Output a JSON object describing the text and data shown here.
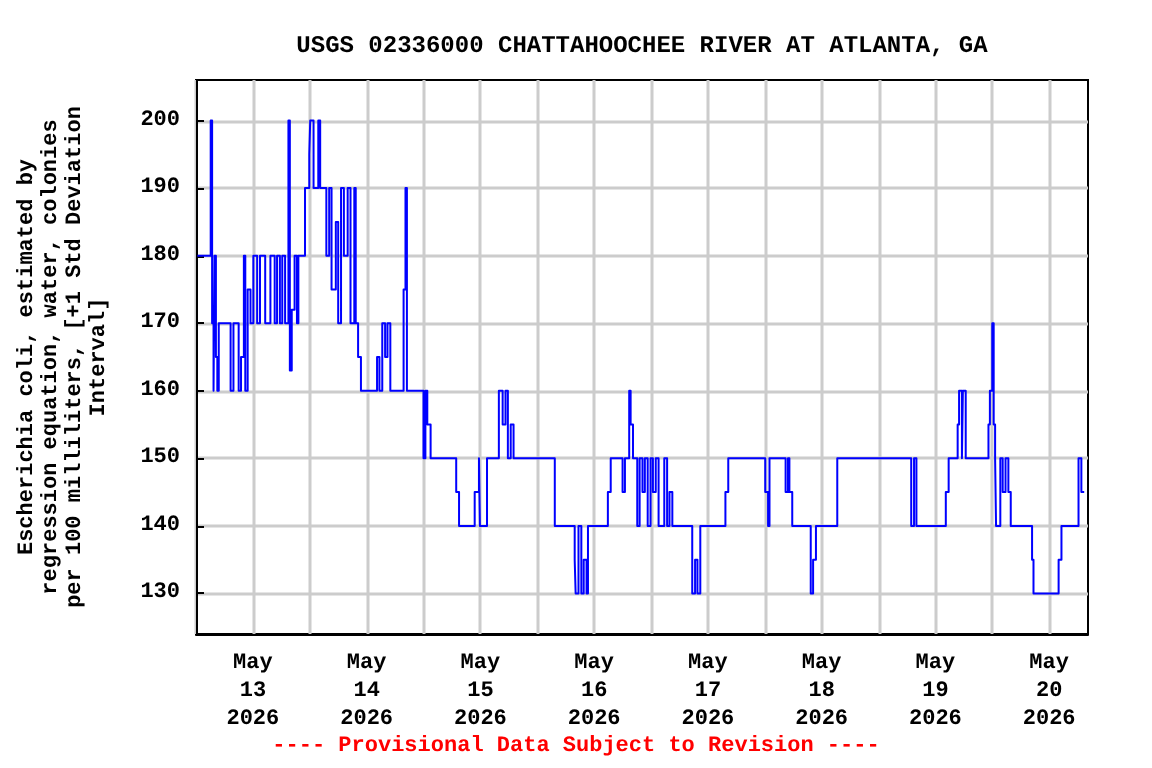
{
  "chart_data": {
    "type": "step",
    "title": "USGS 02336000 CHATTAHOOCHEE RIVER AT ATLANTA, GA",
    "ylabel": "Escherichia coli, estimated by\nregression equation, water, colonies\nper 100 milliliters, [+1 Std Deviation\nInterval]",
    "annotations": [
      "---- Provisional Data Subject to Revision ----"
    ],
    "grid": true,
    "marker": "none",
    "line_style": "solid",
    "xlim": [
      "2026-05-13T00:00",
      "2026-05-20T20:12"
    ],
    "xticks": [
      {
        "value": "2026-05-13T00:00",
        "label": null
      },
      {
        "value": "2026-05-13T12:00",
        "label": "May\n13\n2026"
      },
      {
        "value": "2026-05-14T00:00",
        "label": null
      },
      {
        "value": "2026-05-14T12:00",
        "label": "May\n14\n2026"
      },
      {
        "value": "2026-05-15T00:00",
        "label": null
      },
      {
        "value": "2026-05-15T12:00",
        "label": "May\n15\n2026"
      },
      {
        "value": "2026-05-16T00:00",
        "label": null
      },
      {
        "value": "2026-05-16T12:00",
        "label": "May\n16\n2026"
      },
      {
        "value": "2026-05-17T00:00",
        "label": null
      },
      {
        "value": "2026-05-17T12:00",
        "label": "May\n17\n2026"
      },
      {
        "value": "2026-05-18T00:00",
        "label": null
      },
      {
        "value": "2026-05-18T12:00",
        "label": "May\n18\n2026"
      },
      {
        "value": "2026-05-19T00:00",
        "label": null
      },
      {
        "value": "2026-05-19T12:00",
        "label": "May\n19\n2026"
      },
      {
        "value": "2026-05-20T00:00",
        "label": null
      },
      {
        "value": "2026-05-20T12:00",
        "label": "May\n20\n2026"
      }
    ],
    "ylim": [
      124,
      206
    ],
    "yticks": [
      130,
      140,
      150,
      160,
      170,
      180,
      190,
      200
    ],
    "series": [
      {
        "color": "#0000ff",
        "x": [
          "2026-05-13T00:18",
          "2026-05-13T03:06",
          "2026-05-13T03:24",
          "2026-05-13T03:42",
          "2026-05-13T03:54",
          "2026-05-13T04:12",
          "2026-05-13T04:30",
          "2026-05-13T04:48",
          "2026-05-13T07:18",
          "2026-05-13T07:54",
          "2026-05-13T09:00",
          "2026-05-13T09:30",
          "2026-05-13T10:06",
          "2026-05-13T10:24",
          "2026-05-13T10:54",
          "2026-05-13T11:30",
          "2026-05-13T12:06",
          "2026-05-13T12:54",
          "2026-05-13T13:30",
          "2026-05-13T14:36",
          "2026-05-13T15:42",
          "2026-05-13T16:36",
          "2026-05-13T17:06",
          "2026-05-13T17:42",
          "2026-05-13T18:12",
          "2026-05-13T18:48",
          "2026-05-13T19:30",
          "2026-05-13T19:48",
          "2026-05-13T20:12",
          "2026-05-13T20:48",
          "2026-05-13T21:18",
          "2026-05-13T21:36",
          "2026-05-13T23:00",
          "2026-05-13T23:54",
          "2026-05-14T00:06",
          "2026-05-14T00:48",
          "2026-05-14T01:48",
          "2026-05-14T02:12",
          "2026-05-14T03:30",
          "2026-05-14T04:06",
          "2026-05-14T04:36",
          "2026-05-14T05:30",
          "2026-05-14T06:00",
          "2026-05-14T06:36",
          "2026-05-14T07:12",
          "2026-05-14T08:00",
          "2026-05-14T08:36",
          "2026-05-14T09:24",
          "2026-05-14T09:42",
          "2026-05-14T10:12",
          "2026-05-14T10:48",
          "2026-05-14T14:12",
          "2026-05-14T14:42",
          "2026-05-14T15:18",
          "2026-05-14T15:54",
          "2026-05-14T16:24",
          "2026-05-14T17:00",
          "2026-05-14T19:48",
          "2026-05-14T20:12",
          "2026-05-14T20:30",
          "2026-05-15T00:00",
          "2026-05-15T00:24",
          "2026-05-15T00:48",
          "2026-05-15T01:30",
          "2026-05-15T06:54",
          "2026-05-15T07:30",
          "2026-05-15T10:48",
          "2026-05-15T11:42",
          "2026-05-15T11:54",
          "2026-05-15T13:24",
          "2026-05-15T15:54",
          "2026-05-15T16:42",
          "2026-05-15T17:18",
          "2026-05-15T17:48",
          "2026-05-15T18:24",
          "2026-05-15T19:00",
          "2026-05-16T03:42",
          "2026-05-16T07:54",
          "2026-05-16T08:06",
          "2026-05-16T08:42",
          "2026-05-16T09:18",
          "2026-05-16T09:48",
          "2026-05-16T10:24",
          "2026-05-16T10:42",
          "2026-05-16T14:54",
          "2026-05-16T15:30",
          "2026-05-16T18:00",
          "2026-05-16T18:30",
          "2026-05-16T19:24",
          "2026-05-16T19:42",
          "2026-05-16T20:12",
          "2026-05-16T21:06",
          "2026-05-16T21:36",
          "2026-05-16T22:12",
          "2026-05-16T22:42",
          "2026-05-16T23:18",
          "2026-05-16T23:54",
          "2026-05-17T00:24",
          "2026-05-17T01:00",
          "2026-05-17T01:36",
          "2026-05-17T02:48",
          "2026-05-17T03:24",
          "2026-05-17T03:54",
          "2026-05-17T04:30",
          "2026-05-17T08:42",
          "2026-05-17T09:18",
          "2026-05-17T09:48",
          "2026-05-17T10:24",
          "2026-05-17T15:42",
          "2026-05-17T16:18",
          "2026-05-18T00:06",
          "2026-05-18T00:42",
          "2026-05-18T01:00",
          "2026-05-18T04:24",
          "2026-05-18T04:54",
          "2026-05-18T05:12",
          "2026-05-18T05:48",
          "2026-05-18T09:42",
          "2026-05-18T10:12",
          "2026-05-18T10:48",
          "2026-05-18T15:18",
          "2026-05-19T06:54",
          "2026-05-19T07:30",
          "2026-05-19T08:00",
          "2026-05-19T14:12",
          "2026-05-19T14:48",
          "2026-05-19T16:42",
          "2026-05-19T17:00",
          "2026-05-19T17:36",
          "2026-05-19T17:48",
          "2026-05-19T18:24",
          "2026-05-19T23:12",
          "2026-05-19T23:30",
          "2026-05-20T00:00",
          "2026-05-20T00:18",
          "2026-05-20T00:36",
          "2026-05-20T00:48",
          "2026-05-20T01:42",
          "2026-05-20T02:12",
          "2026-05-20T02:48",
          "2026-05-20T03:24",
          "2026-05-20T03:54",
          "2026-05-20T08:24",
          "2026-05-20T08:42",
          "2026-05-20T14:00",
          "2026-05-20T14:36",
          "2026-05-20T18:12",
          "2026-05-20T18:48",
          "2026-05-20T19:24"
        ],
        "values": [
          180,
          200,
          170,
          160,
          180,
          165,
          160,
          170,
          160,
          170,
          160,
          165,
          180,
          160,
          175,
          170,
          180,
          170,
          180,
          170,
          180,
          170,
          180,
          170,
          180,
          170,
          200,
          163,
          172,
          180,
          170,
          180,
          190,
          195,
          200,
          190,
          200,
          190,
          180,
          190,
          175,
          185,
          170,
          190,
          180,
          190,
          170,
          190,
          170,
          165,
          160,
          165,
          160,
          170,
          165,
          170,
          160,
          175,
          190,
          160,
          150,
          160,
          155,
          150,
          145,
          140,
          145,
          150,
          140,
          150,
          160,
          155,
          160,
          150,
          155,
          150,
          140,
          135,
          130,
          140,
          130,
          135,
          130,
          140,
          145,
          150,
          145,
          150,
          160,
          155,
          150,
          140,
          150,
          145,
          150,
          140,
          150,
          145,
          150,
          140,
          150,
          140,
          145,
          140,
          130,
          135,
          130,
          140,
          145,
          150,
          145,
          140,
          150,
          145,
          150,
          145,
          140,
          130,
          135,
          140,
          150,
          140,
          150,
          140,
          145,
          150,
          155,
          160,
          150,
          160,
          150,
          155,
          160,
          170,
          155,
          150,
          140,
          150,
          145,
          150,
          145,
          140,
          135,
          130,
          135,
          140,
          150,
          145,
          145
        ]
      }
    ]
  }
}
